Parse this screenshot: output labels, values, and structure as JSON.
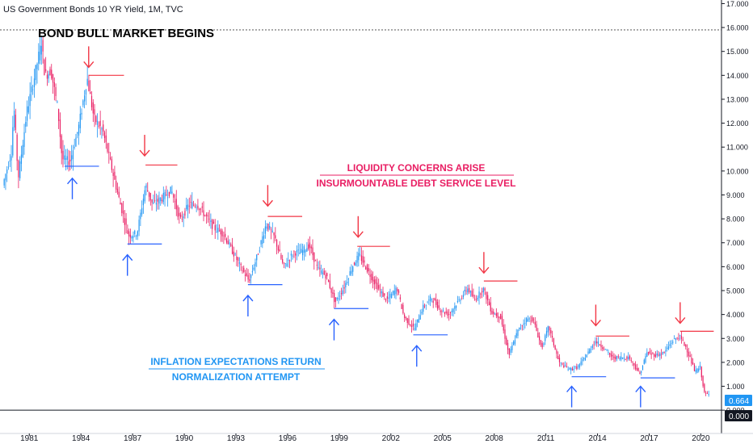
{
  "header": {
    "symbol": "US Government Bonds 10 YR Yield, 1M, TVC"
  },
  "colors": {
    "up": "#2196f3",
    "down": "#e91e63",
    "support": "#2962ff",
    "resistance": "#f23645",
    "grid": "#000000"
  },
  "chart_data": {
    "type": "candlestick",
    "title": "US Government Bonds 10 YR Yield, 1M, TVC",
    "xlabel": "",
    "ylabel": "",
    "x_range": [
      1979.3,
      2021.2
    ],
    "ylim": [
      -0.4,
      17.15
    ],
    "x_ticks": [
      "1981",
      "1984",
      "1987",
      "1990",
      "1993",
      "1996",
      "1999",
      "2002",
      "2005",
      "2008",
      "2011",
      "2014",
      "2017",
      "2020"
    ],
    "y_ticks": [
      "17.000",
      "16.000",
      "15.000",
      "14.000",
      "13.000",
      "12.000",
      "11.000",
      "10.000",
      "9.000",
      "8.000",
      "7.000",
      "6.000",
      "5.000",
      "4.000",
      "3.000",
      "2.000",
      "1.000",
      "0.000"
    ],
    "last_value": "0.664",
    "zero_label": "0.000",
    "path": [
      [
        1979.5,
        9.4
      ],
      [
        1980.0,
        10.8
      ],
      [
        1980.15,
        12.7
      ],
      [
        1980.4,
        9.7
      ],
      [
        1980.9,
        12.5
      ],
      [
        1981.3,
        13.8
      ],
      [
        1981.75,
        15.4
      ],
      [
        1981.95,
        14.0
      ],
      [
        1982.3,
        14.2
      ],
      [
        1982.7,
        12.6
      ],
      [
        1982.95,
        10.5
      ],
      [
        1983.4,
        10.4
      ],
      [
        1983.9,
        11.8
      ],
      [
        1984.4,
        13.9
      ],
      [
        1984.8,
        12.2
      ],
      [
        1985.3,
        11.7
      ],
      [
        1985.8,
        10.2
      ],
      [
        1986.3,
        8.7
      ],
      [
        1986.8,
        7.3
      ],
      [
        1987.3,
        7.4
      ],
      [
        1987.8,
        9.4
      ],
      [
        1988.2,
        8.6
      ],
      [
        1988.8,
        8.9
      ],
      [
        1989.3,
        9.2
      ],
      [
        1989.8,
        7.9
      ],
      [
        1990.3,
        8.6
      ],
      [
        1990.8,
        8.6
      ],
      [
        1991.3,
        8.1
      ],
      [
        1991.8,
        7.6
      ],
      [
        1992.3,
        7.4
      ],
      [
        1992.8,
        6.7
      ],
      [
        1993.3,
        6.0
      ],
      [
        1993.8,
        5.4
      ],
      [
        1994.3,
        6.5
      ],
      [
        1994.8,
        7.8
      ],
      [
        1995.3,
        7.2
      ],
      [
        1995.8,
        6.0
      ],
      [
        1996.4,
        6.6
      ],
      [
        1996.8,
        6.6
      ],
      [
        1997.3,
        6.9
      ],
      [
        1997.8,
        5.9
      ],
      [
        1998.3,
        5.6
      ],
      [
        1998.8,
        4.5
      ],
      [
        1999.3,
        5.1
      ],
      [
        1999.8,
        6.0
      ],
      [
        2000.2,
        6.5
      ],
      [
        2000.8,
        5.7
      ],
      [
        2001.3,
        5.1
      ],
      [
        2001.8,
        4.6
      ],
      [
        2002.4,
        5.1
      ],
      [
        2002.8,
        3.9
      ],
      [
        2003.4,
        3.4
      ],
      [
        2003.9,
        4.3
      ],
      [
        2004.4,
        4.7
      ],
      [
        2004.9,
        4.2
      ],
      [
        2005.4,
        4.0
      ],
      [
        2005.9,
        4.5
      ],
      [
        2006.5,
        5.1
      ],
      [
        2006.9,
        4.6
      ],
      [
        2007.4,
        5.1
      ],
      [
        2007.9,
        4.1
      ],
      [
        2008.4,
        3.9
      ],
      [
        2008.9,
        2.3
      ],
      [
        2009.4,
        3.3
      ],
      [
        2009.9,
        3.8
      ],
      [
        2010.3,
        3.8
      ],
      [
        2010.8,
        2.6
      ],
      [
        2011.2,
        3.5
      ],
      [
        2011.8,
        2.0
      ],
      [
        2012.4,
        1.7
      ],
      [
        2012.9,
        1.8
      ],
      [
        2013.4,
        2.3
      ],
      [
        2013.9,
        2.9
      ],
      [
        2014.4,
        2.6
      ],
      [
        2014.9,
        2.2
      ],
      [
        2015.4,
        2.2
      ],
      [
        2015.9,
        2.2
      ],
      [
        2016.5,
        1.5
      ],
      [
        2016.9,
        2.4
      ],
      [
        2017.4,
        2.3
      ],
      [
        2017.9,
        2.4
      ],
      [
        2018.4,
        2.9
      ],
      [
        2018.8,
        3.1
      ],
      [
        2019.2,
        2.6
      ],
      [
        2019.7,
        1.6
      ],
      [
        2020.0,
        1.8
      ],
      [
        2020.25,
        0.7
      ],
      [
        2020.45,
        0.66
      ]
    ],
    "horizontal_levels": [
      {
        "kind": "resistance",
        "x_start": 1984.45,
        "x_end": 1986.5,
        "y": 14.0
      },
      {
        "kind": "resistance",
        "x_start": 1987.75,
        "x_end": 1989.6,
        "y": 10.25
      },
      {
        "kind": "resistance",
        "x_start": 1994.85,
        "x_end": 1996.85,
        "y": 8.1
      },
      {
        "kind": "resistance",
        "x_start": 2000.05,
        "x_end": 2001.95,
        "y": 6.85
      },
      {
        "kind": "resistance",
        "x_start": 2007.4,
        "x_end": 2009.35,
        "y": 5.4
      },
      {
        "kind": "resistance",
        "x_start": 2013.9,
        "x_end": 2015.85,
        "y": 3.1
      },
      {
        "kind": "resistance",
        "x_start": 2018.8,
        "x_end": 2020.75,
        "y": 3.3
      },
      {
        "kind": "support",
        "x_start": 1983.05,
        "x_end": 1985.05,
        "y": 10.2
      },
      {
        "kind": "support",
        "x_start": 1986.7,
        "x_end": 1988.7,
        "y": 6.95
      },
      {
        "kind": "support",
        "x_start": 1993.7,
        "x_end": 1995.7,
        "y": 5.25
      },
      {
        "kind": "support",
        "x_start": 1998.7,
        "x_end": 2000.7,
        "y": 4.25
      },
      {
        "kind": "support",
        "x_start": 2003.3,
        "x_end": 2005.3,
        "y": 3.15
      },
      {
        "kind": "support",
        "x_start": 2012.5,
        "x_end": 2014.5,
        "y": 1.4
      },
      {
        "kind": "support",
        "x_start": 2016.5,
        "x_end": 2018.5,
        "y": 1.35
      }
    ],
    "bull_market_level": 15.9,
    "top_markers": [
      {
        "x": 1984.45,
        "y": 14.2
      },
      {
        "x": 1987.7,
        "y": 10.5
      },
      {
        "x": 1994.85,
        "y": 8.4
      },
      {
        "x": 2000.1,
        "y": 7.1
      },
      {
        "x": 2007.4,
        "y": 5.6
      },
      {
        "x": 2013.9,
        "y": 3.4
      },
      {
        "x": 2018.8,
        "y": 3.5
      }
    ],
    "bottom_markers": [
      {
        "x": 1983.5,
        "y": 9.9
      },
      {
        "x": 1986.7,
        "y": 6.7
      },
      {
        "x": 1993.7,
        "y": 5.0
      },
      {
        "x": 1998.7,
        "y": 4.0
      },
      {
        "x": 2003.5,
        "y": 2.9
      },
      {
        "x": 2012.5,
        "y": 1.2
      },
      {
        "x": 2016.5,
        "y": 1.2
      }
    ],
    "annotations": [
      {
        "id": "bull",
        "text": "BOND BULL MARKET BEGINS"
      },
      {
        "id": "liquidity",
        "text": "LIQUIDITY CONCERNS ARISE"
      },
      {
        "id": "debt",
        "text": "INSURMOUNTABLE DEBT SERVICE LEVEL"
      },
      {
        "id": "inflation",
        "text": "INFLATION EXPECTATIONS RETURN"
      },
      {
        "id": "normalization",
        "text": "NORMALIZATION ATTEMPT"
      }
    ]
  }
}
